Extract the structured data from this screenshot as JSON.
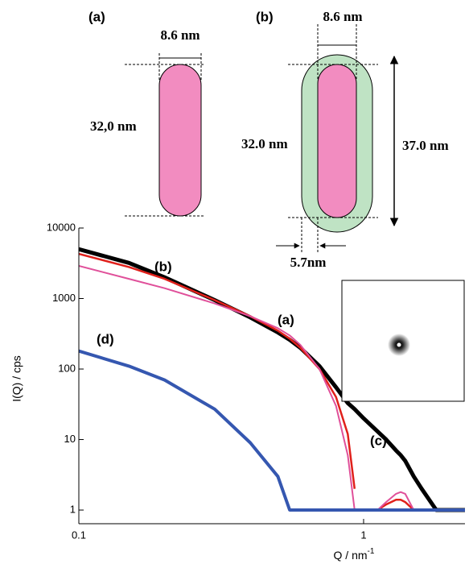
{
  "diagram": {
    "panel_a": {
      "label": "(a)",
      "width": "8.6 nm",
      "length": "32,0 nm"
    },
    "panel_b": {
      "label": "(b)",
      "width": "8.6 nm",
      "length": "32.0 nm",
      "total": "37.0 nm",
      "shell": "5.7nm"
    }
  },
  "chart_data": {
    "type": "line",
    "log_x": true,
    "log_y": true,
    "xlabel": "Q / nm",
    "xlabel_sup": "-1",
    "ylabel": "I(Q)  / cps",
    "xlim": [
      0.1,
      2.27
    ],
    "ylim": [
      0.64,
      10000
    ],
    "xticks": [
      0.1,
      1
    ],
    "yticks": [
      1,
      10,
      100,
      1000,
      10000
    ],
    "annotations": [
      "(a)",
      "(b)",
      "(c)",
      "(d)"
    ],
    "x": [
      0.1,
      0.15,
      0.2,
      0.3,
      0.4,
      0.5,
      0.55,
      0.6,
      0.7,
      0.8,
      0.88,
      0.93,
      1.0,
      1.12,
      1.2,
      1.3,
      1.35,
      1.4,
      1.5,
      1.6,
      1.8,
      2.0,
      2.27
    ],
    "series": [
      {
        "name": "(c)",
        "color": "#000000",
        "width": 5,
        "values": [
          5000,
          3200,
          2000,
          950,
          540,
          330,
          260,
          200,
          110,
          55,
          33,
          27,
          20,
          13,
          10,
          7,
          6,
          5,
          3,
          2,
          1,
          1,
          1
        ]
      },
      {
        "name": "(b)",
        "color": "#e0201b",
        "width": 2.5,
        "values": [
          4300,
          2800,
          1900,
          950,
          560,
          350,
          270,
          200,
          100,
          40,
          12,
          2,
          null,
          1,
          1.2,
          1.4,
          1.4,
          1.3,
          1,
          null,
          null,
          null,
          null
        ]
      },
      {
        "name": "(a)",
        "color": "#e0509a",
        "width": 2,
        "values": [
          2900,
          1900,
          1400,
          850,
          560,
          380,
          300,
          220,
          100,
          30,
          6,
          1,
          null,
          1,
          1.3,
          1.7,
          1.8,
          1.7,
          1,
          null,
          null,
          null,
          null
        ]
      },
      {
        "name": "(d)",
        "color": "#3557b0",
        "width": 4,
        "values": [
          180,
          110,
          70,
          27,
          9,
          3,
          1,
          1,
          1,
          1,
          1,
          1,
          1,
          1,
          1,
          1,
          1,
          1,
          1,
          1,
          1,
          1,
          1
        ]
      }
    ]
  }
}
